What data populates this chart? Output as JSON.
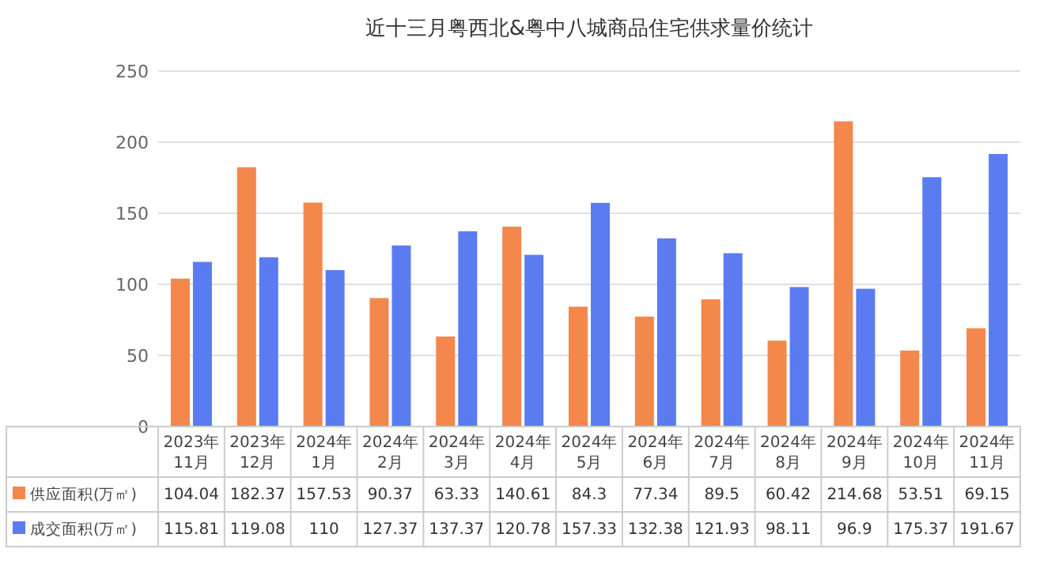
{
  "chart_data": {
    "type": "bar",
    "title": "近十三月粤西北&粤中八城商品住宅供求量价统计",
    "categories": [
      "2023年11月",
      "2023年12月",
      "2024年1月",
      "2024年2月",
      "2024年3月",
      "2024年4月",
      "2024年5月",
      "2024年6月",
      "2024年7月",
      "2024年8月",
      "2024年9月",
      "2024年10月",
      "2024年11月"
    ],
    "series": [
      {
        "name": "供应面积(万㎡)",
        "color": "#f4874b",
        "values": [
          104.04,
          182.37,
          157.53,
          90.37,
          63.33,
          140.61,
          84.3,
          77.34,
          89.5,
          60.42,
          214.68,
          53.51,
          69.15
        ]
      },
      {
        "name": "成交面积(万㎡)",
        "color": "#5b7cf0",
        "values": [
          115.81,
          119.08,
          110,
          127.37,
          137.37,
          120.78,
          157.33,
          132.38,
          121.93,
          98.11,
          96.9,
          175.37,
          191.67
        ]
      }
    ],
    "ylim": [
      0,
      250
    ],
    "yticks": [
      0,
      50,
      100,
      150,
      200,
      250
    ],
    "grid": "y",
    "legend": "bottom",
    "data_labels": true
  }
}
